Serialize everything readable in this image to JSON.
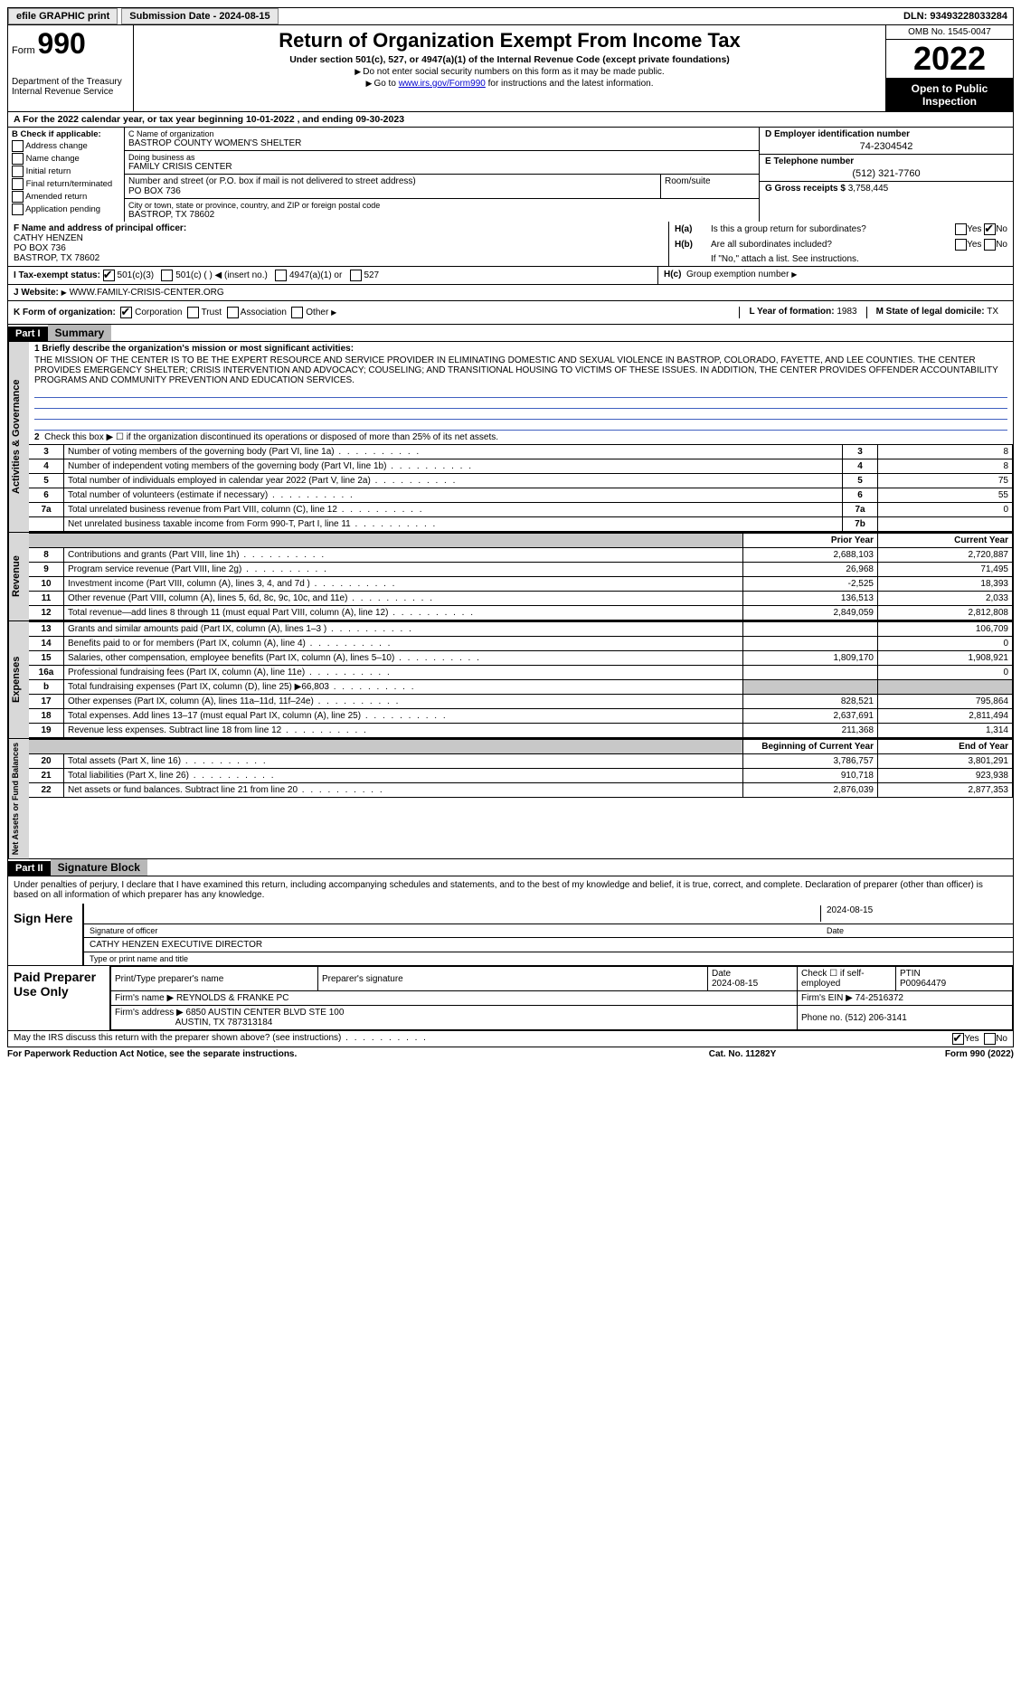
{
  "topbar": {
    "efile": "efile GRAPHIC print",
    "submission": "Submission Date - 2024-08-15",
    "dln": "DLN: 93493228033284"
  },
  "header": {
    "form_word": "Form",
    "form_no": "990",
    "dept": "Department of the Treasury",
    "irs": "Internal Revenue Service",
    "title": "Return of Organization Exempt From Income Tax",
    "sub": "Under section 501(c), 527, or 4947(a)(1) of the Internal Revenue Code (except private foundations)",
    "note1": "Do not enter social security numbers on this form as it may be made public.",
    "note2_pre": "Go to ",
    "note2_link": "www.irs.gov/Form990",
    "note2_post": " for instructions and the latest information.",
    "omb": "OMB No. 1545-0047",
    "year": "2022",
    "open": "Open to Public Inspection"
  },
  "rowA": "A For the 2022 calendar year, or tax year beginning 10-01-2022    , and ending 09-30-2023",
  "colB": {
    "hdr": "B Check if applicable:",
    "opts": [
      "Address change",
      "Name change",
      "Initial return",
      "Final return/terminated",
      "Amended return",
      "Application pending"
    ]
  },
  "colC": {
    "name_lbl": "C Name of organization",
    "name": "BASTROP COUNTY WOMEN'S SHELTER",
    "dba_lbl": "Doing business as",
    "dba": "FAMILY CRISIS CENTER",
    "street_lbl": "Number and street (or P.O. box if mail is not delivered to street address)",
    "street": "PO BOX 736",
    "suite_lbl": "Room/suite",
    "city_lbl": "City or town, state or province, country, and ZIP or foreign postal code",
    "city": "BASTROP, TX  78602"
  },
  "colD": {
    "ein_lbl": "D Employer identification number",
    "ein": "74-2304542",
    "phone_lbl": "E Telephone number",
    "phone": "(512) 321-7760",
    "gross_lbl": "G Gross receipts $",
    "gross": "3,758,445"
  },
  "rowF": {
    "lbl": "F  Name and address of principal officer:",
    "name": "CATHY HENZEN",
    "street": "PO BOX 736",
    "city": "BASTROP, TX  78602"
  },
  "rowH": {
    "a_lbl": "H(a)",
    "a_txt": "Is this a group return for subordinates?",
    "b_lbl": "H(b)",
    "b_txt": "Are all subordinates included?",
    "b_note": "If \"No,\" attach a list. See instructions.",
    "c_lbl": "H(c)",
    "c_txt": "Group exemption number",
    "yes": "Yes",
    "no": "No"
  },
  "rowI": {
    "lbl": "I   Tax-exempt status:",
    "o1": "501(c)(3)",
    "o2": "501(c) (  )",
    "o2b": "(insert no.)",
    "o3": "4947(a)(1) or",
    "o4": "527"
  },
  "rowJ": {
    "lbl": "J   Website:",
    "val": "WWW.FAMILY-CRISIS-CENTER.ORG"
  },
  "rowK": {
    "lbl": "K Form of organization:",
    "o1": "Corporation",
    "o2": "Trust",
    "o3": "Association",
    "o4": "Other",
    "L_lbl": "L Year of formation:",
    "L_val": "1983",
    "M_lbl": "M State of legal domicile:",
    "M_val": "TX"
  },
  "part1": {
    "hdr": "Part I",
    "title": "Summary",
    "l1_lbl": "1  Briefly describe the organization's mission or most significant activities:",
    "l1_txt": "THE MISSION OF THE CENTER IS TO BE THE EXPERT RESOURCE AND SERVICE PROVIDER IN ELIMINATING DOMESTIC AND SEXUAL VIOLENCE IN BASTROP, COLORADO, FAYETTE, AND LEE COUNTIES. THE CENTER PROVIDES EMERGENCY SHELTER; CRISIS INTERVENTION AND ADVOCACY; COUSELING; AND TRANSITIONAL HOUSING TO VICTIMS OF THESE ISSUES. IN ADDITION, THE CENTER PROVIDES OFFENDER ACCOUNTABILITY PROGRAMS AND COMMUNITY PREVENTION AND EDUCATION SERVICES.",
    "l2": "Check this box ▶ ☐  if the organization discontinued its operations or disposed of more than 25% of its net assets.",
    "side_ag": "Activities & Governance",
    "side_rev": "Revenue",
    "side_exp": "Expenses",
    "side_net": "Net Assets or Fund Balances",
    "lines_ag": [
      {
        "n": "3",
        "d": "Number of voting members of the governing body (Part VI, line 1a)",
        "b": "3",
        "v": "8"
      },
      {
        "n": "4",
        "d": "Number of independent voting members of the governing body (Part VI, line 1b)",
        "b": "4",
        "v": "8"
      },
      {
        "n": "5",
        "d": "Total number of individuals employed in calendar year 2022 (Part V, line 2a)",
        "b": "5",
        "v": "75"
      },
      {
        "n": "6",
        "d": "Total number of volunteers (estimate if necessary)",
        "b": "6",
        "v": "55"
      },
      {
        "n": "7a",
        "d": "Total unrelated business revenue from Part VIII, column (C), line 12",
        "b": "7a",
        "v": "0"
      },
      {
        "n": "",
        "d": "Net unrelated business taxable income from Form 990-T, Part I, line 11",
        "b": "7b",
        "v": ""
      }
    ],
    "hdr_prior": "Prior Year",
    "hdr_curr": "Current Year",
    "lines_rev": [
      {
        "n": "8",
        "d": "Contributions and grants (Part VIII, line 1h)",
        "p": "2,688,103",
        "c": "2,720,887"
      },
      {
        "n": "9",
        "d": "Program service revenue (Part VIII, line 2g)",
        "p": "26,968",
        "c": "71,495"
      },
      {
        "n": "10",
        "d": "Investment income (Part VIII, column (A), lines 3, 4, and 7d )",
        "p": "-2,525",
        "c": "18,393"
      },
      {
        "n": "11",
        "d": "Other revenue (Part VIII, column (A), lines 5, 6d, 8c, 9c, 10c, and 11e)",
        "p": "136,513",
        "c": "2,033"
      },
      {
        "n": "12",
        "d": "Total revenue—add lines 8 through 11 (must equal Part VIII, column (A), line 12)",
        "p": "2,849,059",
        "c": "2,812,808"
      }
    ],
    "lines_exp": [
      {
        "n": "13",
        "d": "Grants and similar amounts paid (Part IX, column (A), lines 1–3 )",
        "p": "",
        "c": "106,709"
      },
      {
        "n": "14",
        "d": "Benefits paid to or for members (Part IX, column (A), line 4)",
        "p": "",
        "c": "0"
      },
      {
        "n": "15",
        "d": "Salaries, other compensation, employee benefits (Part IX, column (A), lines 5–10)",
        "p": "1,809,170",
        "c": "1,908,921"
      },
      {
        "n": "16a",
        "d": "Professional fundraising fees (Part IX, column (A), line 11e)",
        "p": "",
        "c": "0"
      },
      {
        "n": "b",
        "d": "Total fundraising expenses (Part IX, column (D), line 25) ▶66,803",
        "p": "shade",
        "c": "shade"
      },
      {
        "n": "17",
        "d": "Other expenses (Part IX, column (A), lines 11a–11d, 11f–24e)",
        "p": "828,521",
        "c": "795,864"
      },
      {
        "n": "18",
        "d": "Total expenses. Add lines 13–17 (must equal Part IX, column (A), line 25)",
        "p": "2,637,691",
        "c": "2,811,494"
      },
      {
        "n": "19",
        "d": "Revenue less expenses. Subtract line 18 from line 12",
        "p": "211,368",
        "c": "1,314"
      }
    ],
    "hdr_beg": "Beginning of Current Year",
    "hdr_end": "End of Year",
    "lines_net": [
      {
        "n": "20",
        "d": "Total assets (Part X, line 16)",
        "p": "3,786,757",
        "c": "3,801,291"
      },
      {
        "n": "21",
        "d": "Total liabilities (Part X, line 26)",
        "p": "910,718",
        "c": "923,938"
      },
      {
        "n": "22",
        "d": "Net assets or fund balances. Subtract line 21 from line 20",
        "p": "2,876,039",
        "c": "2,877,353"
      }
    ]
  },
  "part2": {
    "hdr": "Part II",
    "title": "Signature Block",
    "decl": "Under penalties of perjury, I declare that I have examined this return, including accompanying schedules and statements, and to the best of my knowledge and belief, it is true, correct, and complete. Declaration of preparer (other than officer) is based on all information of which preparer has any knowledge.",
    "sign_here": "Sign Here",
    "sig_of_officer": "Signature of officer",
    "sig_date": "2024-08-15",
    "date_lbl": "Date",
    "officer_name": "CATHY HENZEN  EXECUTIVE DIRECTOR",
    "type_name_lbl": "Type or print name and title",
    "paid_prep": "Paid Preparer Use Only",
    "pp_name_lbl": "Print/Type preparer's name",
    "pp_sig_lbl": "Preparer's signature",
    "pp_date_lbl": "Date",
    "pp_date": "2024-08-15",
    "pp_check_lbl": "Check ☐ if self-employed",
    "ptin_lbl": "PTIN",
    "ptin": "P00964479",
    "firm_name_lbl": "Firm's name   ▶",
    "firm_name": "REYNOLDS & FRANKE PC",
    "firm_ein_lbl": "Firm's EIN ▶",
    "firm_ein": "74-2516372",
    "firm_addr_lbl": "Firm's address ▶",
    "firm_addr1": "6850 AUSTIN CENTER BLVD STE 100",
    "firm_addr2": "AUSTIN, TX  787313184",
    "firm_phone_lbl": "Phone no.",
    "firm_phone": "(512) 206-3141",
    "discuss": "May the IRS discuss this return with the preparer shown above? (see instructions)",
    "yes": "Yes",
    "no": "No"
  },
  "footer": {
    "pra": "For Paperwork Reduction Act Notice, see the separate instructions.",
    "cat": "Cat. No. 11282Y",
    "form": "Form 990 (2022)"
  }
}
